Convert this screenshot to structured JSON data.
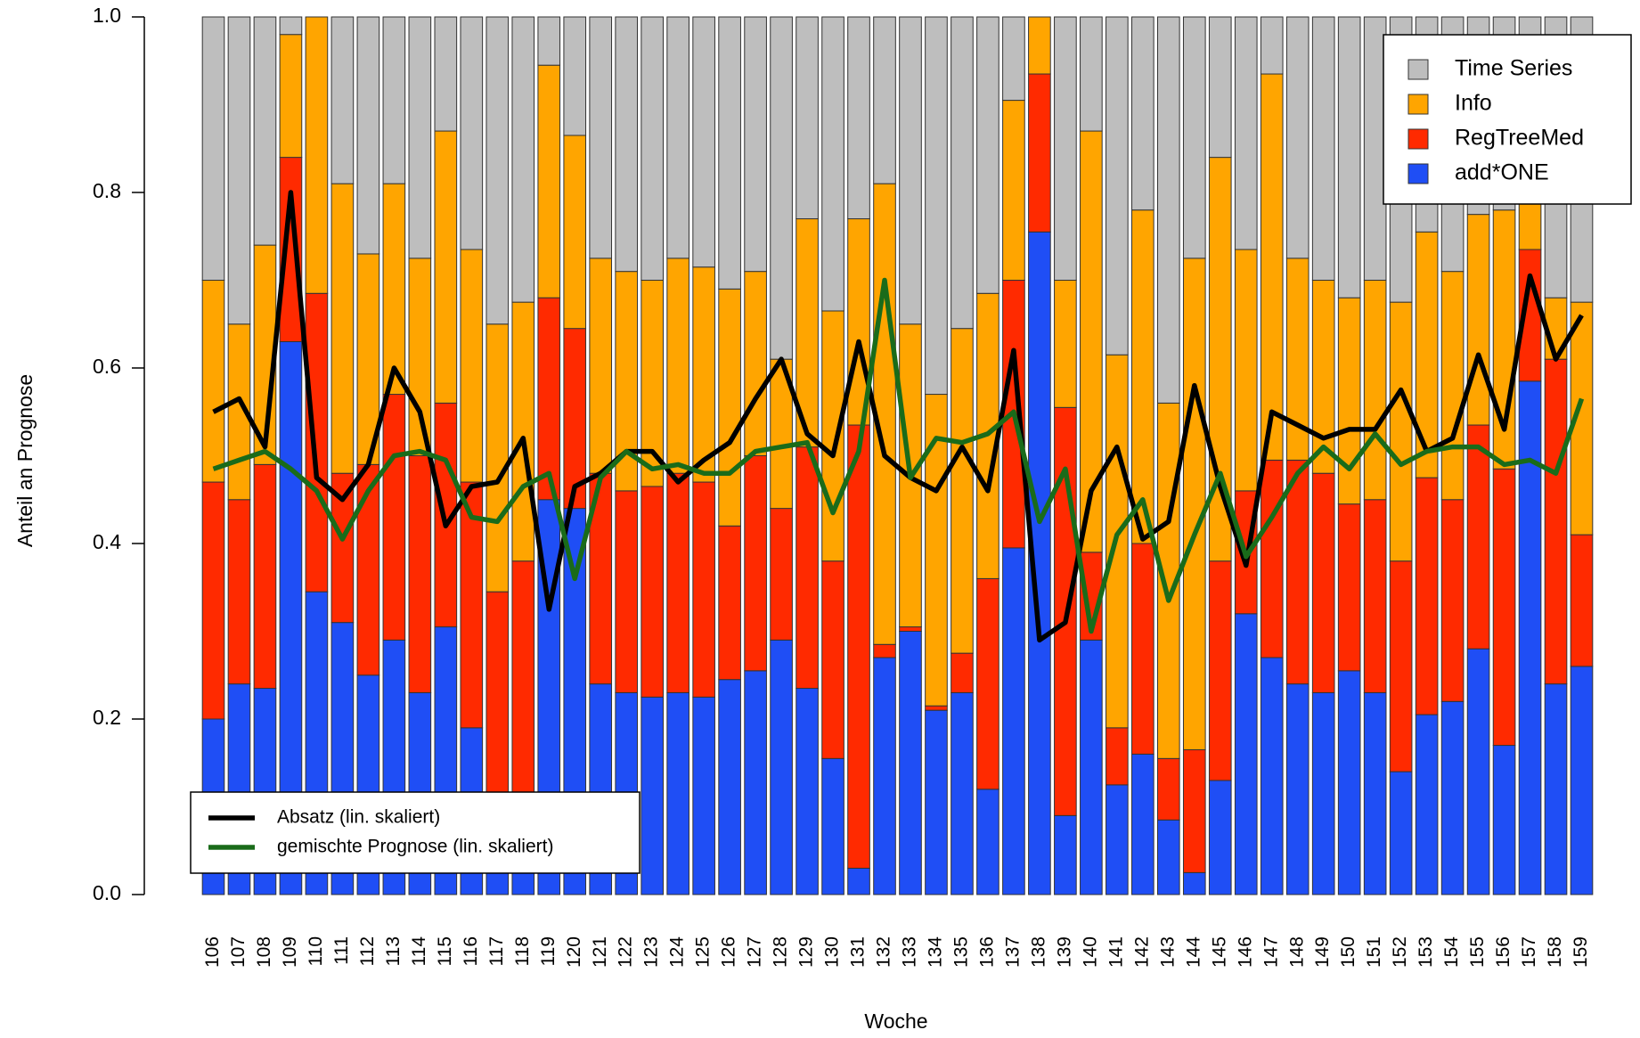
{
  "chart_data": {
    "type": "bar",
    "stacked": true,
    "xlabel": "Woche",
    "ylabel": "Anteil an Prognose",
    "categories": [
      "106",
      "107",
      "108",
      "109",
      "110",
      "111",
      "112",
      "113",
      "114",
      "115",
      "116",
      "117",
      "118",
      "119",
      "120",
      "121",
      "122",
      "123",
      "124",
      "125",
      "126",
      "127",
      "128",
      "129",
      "130",
      "131",
      "132",
      "133",
      "134",
      "135",
      "136",
      "137",
      "138",
      "139",
      "140",
      "141",
      "142",
      "143",
      "144",
      "145",
      "146",
      "147",
      "148",
      "149",
      "150",
      "151",
      "152",
      "153",
      "154",
      "155",
      "156",
      "157",
      "158",
      "159"
    ],
    "ylim": [
      0,
      1
    ],
    "yticks": [
      {
        "value": 0,
        "label": "0.0"
      },
      0.2,
      0.4,
      0.6,
      0.8,
      {
        "value": 1,
        "label": "1.0"
      }
    ],
    "legend": "top-right",
    "line_legend": "bottom-left",
    "series": [
      {
        "name": "Time Series",
        "color": "#bebebe",
        "values": [
          0.3,
          0.35,
          0.26,
          0.02,
          0,
          0.19,
          0.27,
          0.19,
          0.275,
          0.13,
          0.265,
          0.35,
          0.325,
          0.055,
          0.135,
          0.275,
          0.29,
          0.3,
          0.275,
          0.285,
          0.31,
          0.29,
          0.39,
          0.23,
          0.335,
          0.23,
          0.19,
          0.35,
          0.43,
          0.355,
          0.315,
          0.095,
          0,
          0.3,
          0.13,
          0.385,
          0.22,
          0.44,
          0.275,
          0.16,
          0.265,
          0.065,
          0.275,
          0.3,
          0.32,
          0.3,
          0.325,
          0.245,
          0.29,
          0.225,
          0.22,
          0.2,
          0.32,
          0.325
        ]
      },
      {
        "name": "Info",
        "color": "#ffa500",
        "values": [
          0.23,
          0.2,
          0.25,
          0.14,
          0.315,
          0.33,
          0.24,
          0.24,
          0.225,
          0.31,
          0.265,
          0.305,
          0.295,
          0.265,
          0.22,
          0.245,
          0.25,
          0.235,
          0.245,
          0.245,
          0.27,
          0.21,
          0.17,
          0.26,
          0.285,
          0.235,
          0.525,
          0.345,
          0.355,
          0.37,
          0.325,
          0.205,
          0.065,
          0.145,
          0.48,
          0.425,
          0.38,
          0.405,
          0.56,
          0.46,
          0.275,
          0.44,
          0.23,
          0.22,
          0.235,
          0.25,
          0.295,
          0.28,
          0.26,
          0.24,
          0.295,
          0.065,
          0.07,
          0.265
        ]
      },
      {
        "name": "RegTreeMed",
        "color": "#ff2a00",
        "values": [
          0.27,
          0.21,
          0.255,
          0.21,
          0.34,
          0.17,
          0.24,
          0.28,
          0.27,
          0.255,
          0.28,
          0.245,
          0.28,
          0.23,
          0.205,
          0.24,
          0.23,
          0.24,
          0.25,
          0.245,
          0.175,
          0.245,
          0.15,
          0.275,
          0.225,
          0.505,
          0.015,
          0.005,
          0.005,
          0.045,
          0.24,
          0.305,
          0.18,
          0.465,
          0.1,
          0.065,
          0.24,
          0.07,
          0.14,
          0.25,
          0.14,
          0.225,
          0.255,
          0.25,
          0.19,
          0.22,
          0.24,
          0.27,
          0.23,
          0.255,
          0.315,
          0.15,
          0.37,
          0.15
        ]
      },
      {
        "name": "add*ONE",
        "color": "#1f4ef5",
        "values": [
          0.2,
          0.24,
          0.235,
          0.63,
          0.345,
          0.31,
          0.25,
          0.29,
          0.23,
          0.305,
          0.19,
          0.1,
          0.1,
          0.45,
          0.44,
          0.24,
          0.23,
          0.225,
          0.23,
          0.225,
          0.245,
          0.255,
          0.29,
          0.235,
          0.155,
          0.03,
          0.27,
          0.3,
          0.21,
          0.23,
          0.12,
          0.395,
          0.755,
          0.09,
          0.29,
          0.125,
          0.16,
          0.085,
          0.025,
          0.13,
          0.32,
          0.27,
          0.24,
          0.23,
          0.255,
          0.23,
          0.14,
          0.205,
          0.22,
          0.28,
          0.17,
          0.585,
          0.24,
          0.26
        ]
      },
      {
        "name": "Absatz (lin. skaliert)",
        "type": "line",
        "color": "#000000",
        "values": [
          0.55,
          0.565,
          0.51,
          0.8,
          0.475,
          0.45,
          0.49,
          0.6,
          0.55,
          0.42,
          0.465,
          0.47,
          0.52,
          0.325,
          0.465,
          0.48,
          0.505,
          0.505,
          0.47,
          0.495,
          0.515,
          0.565,
          0.61,
          0.525,
          0.5,
          0.63,
          0.5,
          0.475,
          0.46,
          0.51,
          0.46,
          0.62,
          0.29,
          0.31,
          0.46,
          0.51,
          0.405,
          0.425,
          0.58,
          0.465,
          0.375,
          0.55,
          0.535,
          0.52,
          0.53,
          0.53,
          0.575,
          0.505,
          0.52,
          0.615,
          0.53,
          0.705,
          0.61,
          0.66
        ]
      },
      {
        "name": "gemischte Prognose (lin. skaliert)",
        "type": "line",
        "color": "#1a6b1a",
        "values": [
          0.485,
          0.495,
          0.505,
          0.485,
          0.46,
          0.405,
          0.46,
          0.5,
          0.505,
          0.495,
          0.43,
          0.425,
          0.465,
          0.48,
          0.36,
          0.475,
          0.505,
          0.485,
          0.49,
          0.48,
          0.48,
          0.505,
          0.51,
          0.515,
          0.435,
          0.505,
          0.7,
          0.475,
          0.52,
          0.515,
          0.525,
          0.55,
          0.425,
          0.485,
          0.3,
          0.41,
          0.45,
          0.335,
          0.41,
          0.48,
          0.385,
          0.43,
          0.48,
          0.51,
          0.485,
          0.525,
          0.49,
          0.505,
          0.51,
          0.51,
          0.49,
          0.495,
          0.48,
          0.565
        ]
      }
    ]
  }
}
